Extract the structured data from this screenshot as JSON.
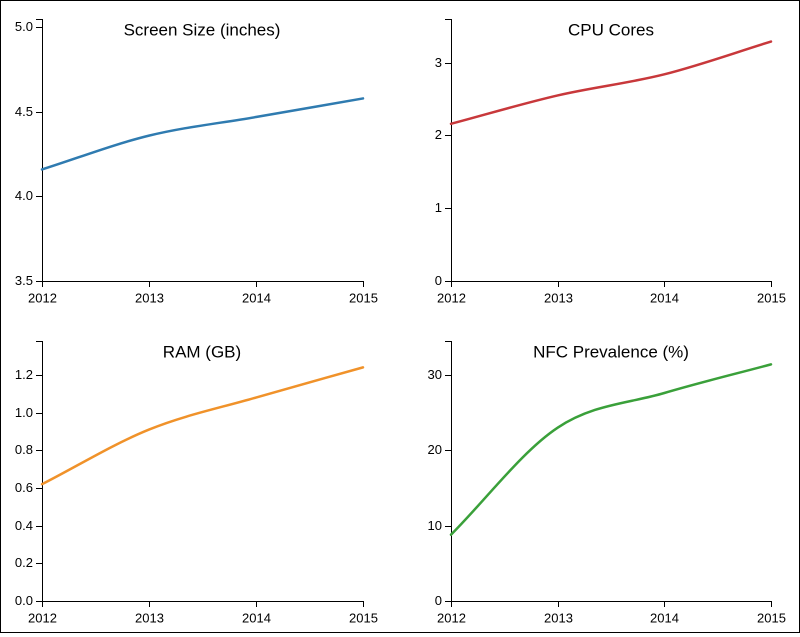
{
  "chart_data": [
    {
      "type": "line",
      "title": "Screen Size (inches)",
      "x": [
        "2012",
        "2013",
        "2014",
        "2015"
      ],
      "xlabel": "",
      "ylabel": "",
      "series": [
        {
          "values": [
            4.16,
            4.36,
            4.47,
            4.58
          ],
          "color": "#2f7bb0"
        }
      ],
      "yticks": [
        3.5,
        4.0,
        4.5,
        5.0
      ],
      "ytick_labels": [
        "3.5",
        "4.0",
        "4.5",
        "5.0"
      ],
      "ylim": [
        3.5,
        5.05
      ],
      "grid": false
    },
    {
      "type": "line",
      "title": "CPU Cores",
      "x": [
        "2012",
        "2013",
        "2014",
        "2015"
      ],
      "xlabel": "",
      "ylabel": "",
      "series": [
        {
          "values": [
            2.16,
            2.55,
            2.84,
            3.29
          ],
          "color": "#c8383b"
        }
      ],
      "yticks": [
        0,
        1,
        2,
        3
      ],
      "ytick_labels": [
        "0",
        "1",
        "2",
        "3"
      ],
      "ylim": [
        0,
        3.6
      ],
      "grid": false
    },
    {
      "type": "line",
      "title": "RAM (GB)",
      "x": [
        "2012",
        "2013",
        "2014",
        "2015"
      ],
      "xlabel": "",
      "ylabel": "",
      "series": [
        {
          "values": [
            0.62,
            0.91,
            1.08,
            1.24
          ],
          "color": "#f0922a"
        }
      ],
      "yticks": [
        0.0,
        0.2,
        0.4,
        0.6,
        0.8,
        1.0,
        1.2
      ],
      "ytick_labels": [
        "0.0",
        "0.2",
        "0.4",
        "0.6",
        "0.8",
        "1.0",
        "1.2"
      ],
      "ylim": [
        0,
        1.38
      ],
      "grid": false
    },
    {
      "type": "line",
      "title": "NFC Prevalence (%)",
      "x": [
        "2012",
        "2013",
        "2014",
        "2015"
      ],
      "xlabel": "",
      "ylabel": "",
      "series": [
        {
          "values": [
            8.8,
            23.0,
            27.6,
            31.4
          ],
          "color": "#3aa03a"
        }
      ],
      "yticks": [
        0,
        10,
        20,
        30
      ],
      "ytick_labels": [
        "0",
        "10",
        "20",
        "30"
      ],
      "ylim": [
        0,
        34.5
      ],
      "grid": false
    }
  ]
}
